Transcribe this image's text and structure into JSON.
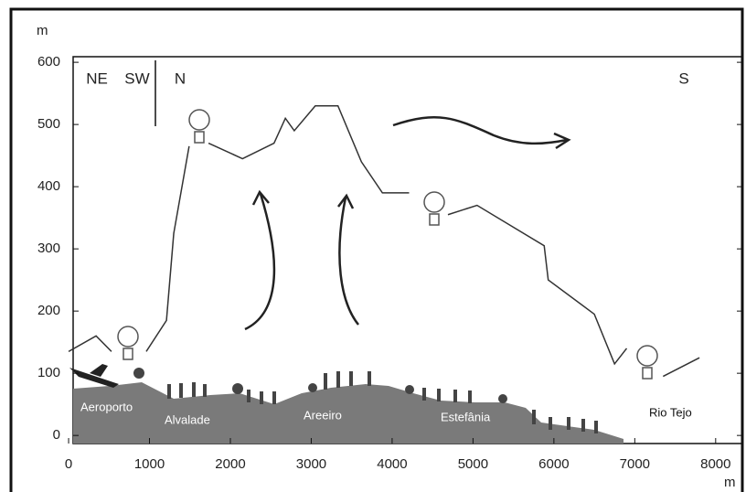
{
  "chart_data": {
    "type": "line",
    "x_label": "m",
    "y_label": "m",
    "directions": [
      "NE",
      "SW",
      "N",
      "S"
    ],
    "places": [
      "Aeroporto",
      "Alvalade",
      "Areeiro",
      "Estefânia",
      "Rio Tejo"
    ],
    "x": [
      0,
      340,
      530,
      640,
      960,
      1210,
      1300,
      1490,
      1600,
      1730,
      2150,
      2540,
      2680,
      2790,
      3050,
      3330,
      3620,
      3880,
      4210,
      4450,
      4690,
      5050,
      5880,
      5930,
      6500,
      6750,
      6900,
      7100,
      7350,
      7800
    ],
    "values": [
      135,
      160,
      135,
      null,
      135,
      185,
      325,
      465,
      null,
      470,
      445,
      470,
      510,
      490,
      530,
      530,
      440,
      390,
      390,
      null,
      355,
      370,
      305,
      250,
      195,
      115,
      140,
      null,
      95,
      125
    ],
    "color": "#333333",
    "xlim": [
      56,
      8330
    ],
    "ylim": [
      -13,
      609
    ],
    "xticks": [
      0,
      1000,
      2000,
      3000,
      4000,
      5000,
      6000,
      7000,
      8000
    ],
    "yticks": [
      0,
      100,
      200,
      300,
      400,
      500,
      600
    ]
  }
}
